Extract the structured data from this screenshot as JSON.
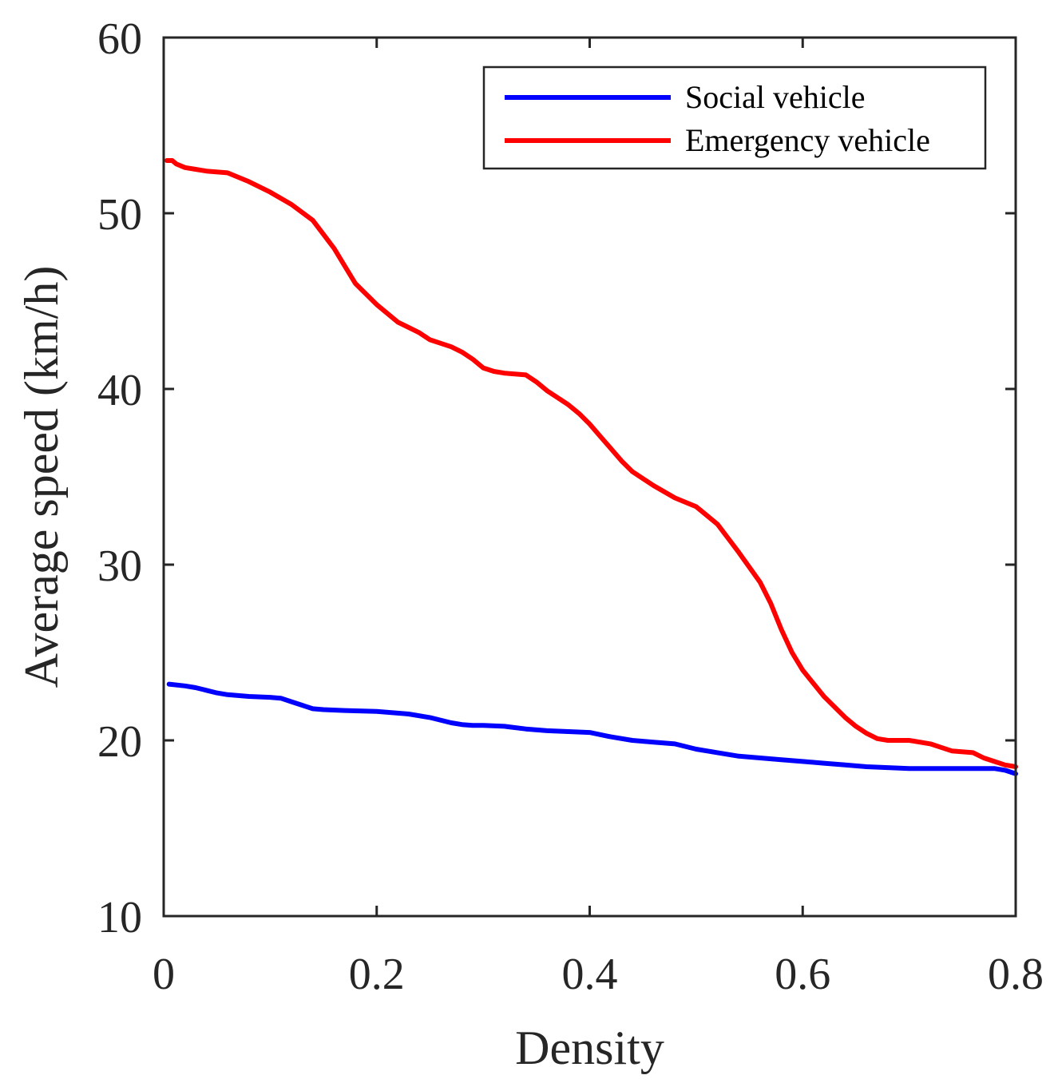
{
  "chart_data": {
    "type": "line",
    "title": "",
    "xlabel": "Density",
    "ylabel": "Average speed (km/h)",
    "xlim": [
      0,
      0.8
    ],
    "ylim": [
      10,
      60
    ],
    "xticks": [
      0,
      0.2,
      0.4,
      0.6,
      0.8
    ],
    "xtick_labels": [
      "0",
      "0.2",
      "0.4",
      "0.6",
      "0.8"
    ],
    "yticks": [
      10,
      20,
      30,
      40,
      50,
      60
    ],
    "ytick_labels": [
      "10",
      "20",
      "30",
      "40",
      "50",
      "60"
    ],
    "grid": false,
    "legend_position": "top-right",
    "series": [
      {
        "name": "Social vehicle",
        "color": "#0000ff",
        "x": [
          0.005,
          0.02,
          0.03,
          0.04,
          0.05,
          0.06,
          0.08,
          0.1,
          0.11,
          0.12,
          0.13,
          0.14,
          0.15,
          0.17,
          0.2,
          0.23,
          0.25,
          0.27,
          0.28,
          0.29,
          0.3,
          0.32,
          0.34,
          0.36,
          0.38,
          0.4,
          0.42,
          0.44,
          0.46,
          0.48,
          0.5,
          0.52,
          0.54,
          0.56,
          0.58,
          0.6,
          0.62,
          0.64,
          0.66,
          0.68,
          0.7,
          0.72,
          0.74,
          0.76,
          0.78,
          0.79,
          0.8
        ],
        "values": [
          23.2,
          23.1,
          23.0,
          22.85,
          22.7,
          22.6,
          22.5,
          22.45,
          22.4,
          22.2,
          22.0,
          21.8,
          21.75,
          21.7,
          21.65,
          21.5,
          21.3,
          21.0,
          20.9,
          20.85,
          20.85,
          20.8,
          20.65,
          20.55,
          20.5,
          20.45,
          20.2,
          20.0,
          19.9,
          19.8,
          19.5,
          19.3,
          19.1,
          19.0,
          18.9,
          18.8,
          18.7,
          18.6,
          18.5,
          18.45,
          18.4,
          18.4,
          18.4,
          18.4,
          18.4,
          18.3,
          18.1
        ]
      },
      {
        "name": "Emergency vehicle",
        "color": "#ff0000",
        "x": [
          0.003,
          0.008,
          0.012,
          0.02,
          0.03,
          0.04,
          0.06,
          0.08,
          0.1,
          0.12,
          0.14,
          0.15,
          0.16,
          0.17,
          0.18,
          0.2,
          0.22,
          0.24,
          0.25,
          0.26,
          0.27,
          0.28,
          0.29,
          0.3,
          0.31,
          0.32,
          0.34,
          0.35,
          0.36,
          0.37,
          0.38,
          0.39,
          0.4,
          0.41,
          0.42,
          0.43,
          0.44,
          0.45,
          0.46,
          0.48,
          0.5,
          0.52,
          0.53,
          0.54,
          0.56,
          0.57,
          0.58,
          0.59,
          0.6,
          0.62,
          0.64,
          0.65,
          0.66,
          0.67,
          0.68,
          0.69,
          0.7,
          0.72,
          0.73,
          0.74,
          0.76,
          0.77,
          0.78,
          0.79,
          0.8
        ],
        "values": [
          53.0,
          53.0,
          52.8,
          52.6,
          52.5,
          52.4,
          52.3,
          51.8,
          51.2,
          50.5,
          49.6,
          48.8,
          48.0,
          47.0,
          46.0,
          44.8,
          43.8,
          43.2,
          42.8,
          42.6,
          42.4,
          42.1,
          41.7,
          41.2,
          41.0,
          40.9,
          40.8,
          40.4,
          39.9,
          39.5,
          39.1,
          38.6,
          38.0,
          37.3,
          36.6,
          35.9,
          35.3,
          34.9,
          34.5,
          33.8,
          33.3,
          32.3,
          31.5,
          30.7,
          29.0,
          27.8,
          26.3,
          25.0,
          24.0,
          22.5,
          21.3,
          20.8,
          20.4,
          20.1,
          20.0,
          20.0,
          20.0,
          19.8,
          19.6,
          19.4,
          19.3,
          19.0,
          18.8,
          18.6,
          18.5
        ]
      }
    ]
  }
}
